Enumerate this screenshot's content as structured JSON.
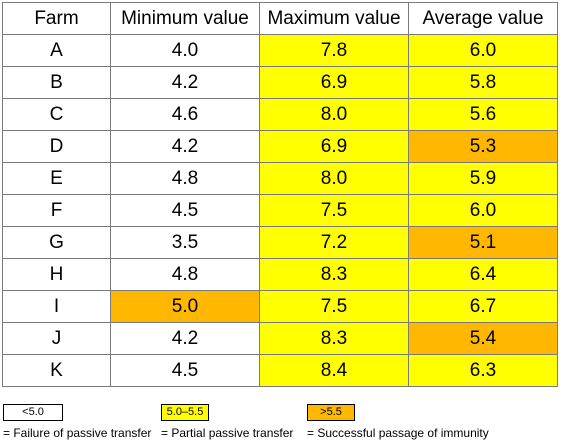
{
  "table": {
    "headers": [
      "Farm",
      "Minimum value",
      "Maximum value",
      "Average value"
    ],
    "rows": [
      {
        "farm": "A",
        "min": "4.0",
        "max": "7.8",
        "avg": "6.0",
        "fills": [
          "",
          "",
          "yellow",
          "yellow"
        ]
      },
      {
        "farm": "B",
        "min": "4.2",
        "max": "6.9",
        "avg": "5.8",
        "fills": [
          "",
          "",
          "yellow",
          "yellow"
        ]
      },
      {
        "farm": "C",
        "min": "4.6",
        "max": "8.0",
        "avg": "5.6",
        "fills": [
          "",
          "",
          "yellow",
          "yellow"
        ]
      },
      {
        "farm": "D",
        "min": "4.2",
        "max": "6.9",
        "avg": "5.3",
        "fills": [
          "",
          "",
          "yellow",
          "orange"
        ]
      },
      {
        "farm": "E",
        "min": "4.8",
        "max": "8.0",
        "avg": "5.9",
        "fills": [
          "",
          "",
          "yellow",
          "yellow"
        ]
      },
      {
        "farm": "F",
        "min": "4.5",
        "max": "7.5",
        "avg": "6.0",
        "fills": [
          "",
          "",
          "yellow",
          "yellow"
        ]
      },
      {
        "farm": "G",
        "min": "3.5",
        "max": "7.2",
        "avg": "5.1",
        "fills": [
          "",
          "",
          "yellow",
          "orange"
        ]
      },
      {
        "farm": "H",
        "min": "4.8",
        "max": "8.3",
        "avg": "6.4",
        "fills": [
          "",
          "",
          "yellow",
          "yellow"
        ]
      },
      {
        "farm": "I",
        "min": "5.0",
        "max": "7.5",
        "avg": "6.7",
        "fills": [
          "",
          "orange",
          "yellow",
          "yellow"
        ]
      },
      {
        "farm": "J",
        "min": "4.2",
        "max": "8.3",
        "avg": "5.4",
        "fills": [
          "",
          "",
          "yellow",
          "orange"
        ]
      },
      {
        "farm": "K",
        "min": "4.5",
        "max": "8.4",
        "avg": "6.3",
        "fills": [
          "",
          "",
          "yellow",
          "yellow"
        ]
      }
    ]
  },
  "legend": [
    {
      "swatch_label": "<5.0",
      "description": "= Failure of passive transfer",
      "color": "#ffffff"
    },
    {
      "swatch_label": "5.0–5.5",
      "description": "= Partial passive transfer",
      "color": "#ffff00"
    },
    {
      "swatch_label": ">5.5",
      "description": "= Successful passage of immunity",
      "color": "#ffb700"
    }
  ],
  "colors": {
    "yellow": "#ffff00",
    "orange": "#ffb700",
    "border": "#7a7a7a"
  }
}
